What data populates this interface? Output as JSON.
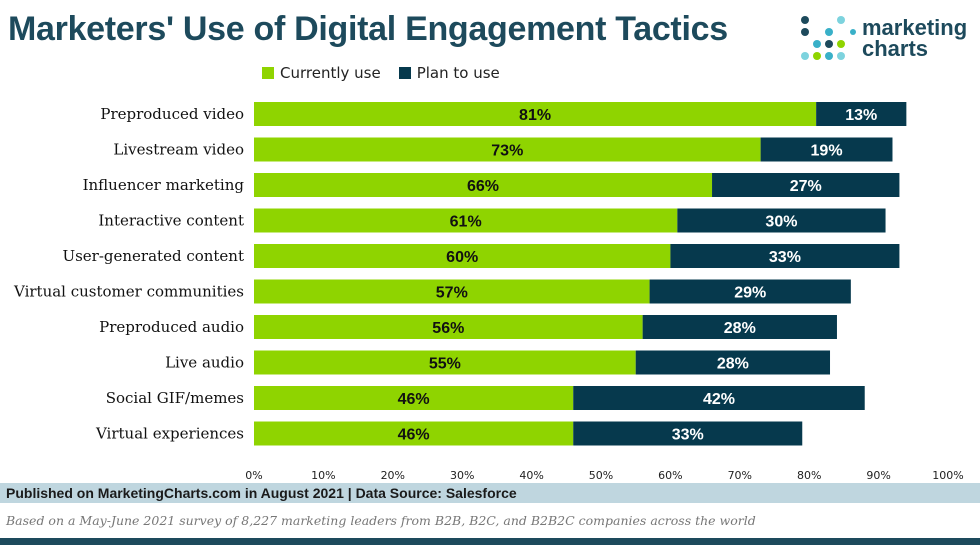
{
  "title": "Marketers' Use of Digital Engagement Tactics",
  "logo": {
    "line1": "marketing",
    "line2": "charts"
  },
  "colors": {
    "current": "#8fd400",
    "plan": "#06394d",
    "title": "#1d4a5c"
  },
  "chart_data": {
    "type": "bar",
    "orientation": "horizontal",
    "stacked": true,
    "categories": [
      "Preproduced video",
      "Livestream video",
      "Influencer marketing",
      "Interactive content",
      "User-generated content",
      "Virtual customer communities",
      "Preproduced audio",
      "Live audio",
      "Social GIF/memes",
      "Virtual experiences"
    ],
    "series": [
      {
        "name": "Currently use",
        "values": [
          81,
          73,
          66,
          61,
          60,
          57,
          56,
          55,
          46,
          46
        ],
        "labels": [
          "81%",
          "73%",
          "66%",
          "61%",
          "60%",
          "57%",
          "56%",
          "55%",
          "46%",
          "46%"
        ]
      },
      {
        "name": "Plan to use",
        "values": [
          13,
          19,
          27,
          30,
          33,
          29,
          28,
          28,
          42,
          33
        ],
        "labels": [
          "13%",
          "19%",
          "27%",
          "30%",
          "33%",
          "29%",
          "28%",
          "28%",
          "42%",
          "33%"
        ]
      }
    ],
    "xlim": [
      0,
      100
    ],
    "xticks": [
      "0%",
      "10%",
      "20%",
      "30%",
      "40%",
      "50%",
      "60%",
      "70%",
      "80%",
      "90%",
      "100%"
    ],
    "legend": "top-left",
    "grid": false
  },
  "footer": "Published on MarketingCharts.com in August 2021 | Data Source: Salesforce",
  "note": "Based on a May-June 2021 survey of 8,227 marketing leaders from B2B, B2C, and B2B2C companies across the world"
}
